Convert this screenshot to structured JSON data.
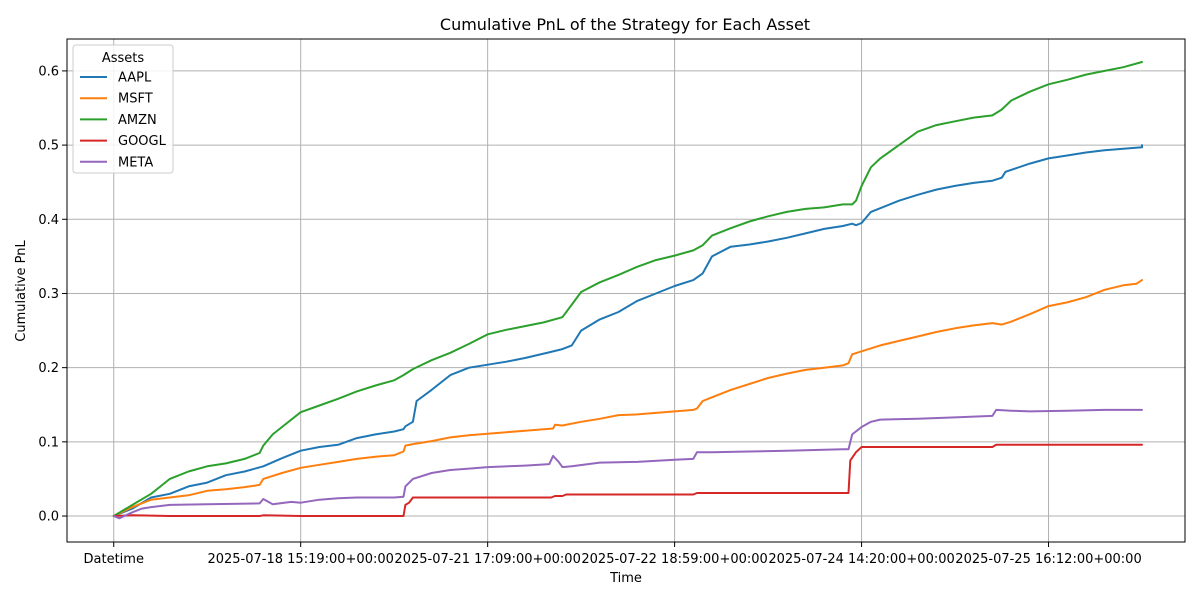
{
  "chart_data": {
    "type": "line",
    "title": "Cumulative PnL of the Strategy for Each Asset",
    "xlabel": "Time",
    "ylabel": "Cumulative PnL",
    "grid": true,
    "legend": {
      "title": "Assets",
      "placement": "top-left"
    },
    "x_ticks": [
      {
        "index": 0,
        "label": "Datetime"
      },
      {
        "index": 1,
        "label": "2025-07-18 15:19:00+00:00"
      },
      {
        "index": 2,
        "label": "2025-07-21 17:09:00+00:00"
      },
      {
        "index": 3,
        "label": "2025-07-22 18:59:00+00:00"
      },
      {
        "index": 4,
        "label": "2025-07-24 14:20:00+00:00"
      },
      {
        "index": 5,
        "label": "2025-07-25 16:12:00+00:00"
      }
    ],
    "xlim": [
      -0.25,
      5.73
    ],
    "ylim": [
      -0.035,
      0.643
    ],
    "y_ticks": [
      0.0,
      0.1,
      0.2,
      0.3,
      0.4,
      0.5,
      0.6
    ],
    "y_tick_labels": [
      "0.0",
      "0.1",
      "0.2",
      "0.3",
      "0.4",
      "0.5",
      "0.6"
    ],
    "series": [
      {
        "name": "AAPL",
        "color": "#1f77b4",
        "points": [
          [
            0,
            0
          ],
          [
            0.1,
            0.01
          ],
          [
            0.2,
            0.025
          ],
          [
            0.3,
            0.03
          ],
          [
            0.4,
            0.04
          ],
          [
            0.5,
            0.045
          ],
          [
            0.6,
            0.055
          ],
          [
            0.7,
            0.06
          ],
          [
            0.8,
            0.067
          ],
          [
            0.9,
            0.078
          ],
          [
            1.0,
            0.088
          ],
          [
            1.1,
            0.093
          ],
          [
            1.2,
            0.096
          ],
          [
            1.3,
            0.105
          ],
          [
            1.4,
            0.11
          ],
          [
            1.5,
            0.114
          ],
          [
            1.55,
            0.117
          ],
          [
            1.56,
            0.121
          ],
          [
            1.6,
            0.127
          ],
          [
            1.62,
            0.155
          ],
          [
            1.7,
            0.17
          ],
          [
            1.8,
            0.19
          ],
          [
            1.9,
            0.2
          ],
          [
            2.0,
            0.204
          ],
          [
            2.1,
            0.208
          ],
          [
            2.2,
            0.213
          ],
          [
            2.3,
            0.219
          ],
          [
            2.4,
            0.225
          ],
          [
            2.45,
            0.23
          ],
          [
            2.5,
            0.25
          ],
          [
            2.6,
            0.265
          ],
          [
            2.7,
            0.275
          ],
          [
            2.8,
            0.29
          ],
          [
            2.9,
            0.3
          ],
          [
            3.0,
            0.31
          ],
          [
            3.1,
            0.318
          ],
          [
            3.15,
            0.327
          ],
          [
            3.2,
            0.35
          ],
          [
            3.3,
            0.363
          ],
          [
            3.4,
            0.366
          ],
          [
            3.5,
            0.37
          ],
          [
            3.6,
            0.375
          ],
          [
            3.7,
            0.381
          ],
          [
            3.8,
            0.387
          ],
          [
            3.9,
            0.391
          ],
          [
            3.95,
            0.394
          ],
          [
            3.97,
            0.392
          ],
          [
            4.0,
            0.395
          ],
          [
            4.05,
            0.41
          ],
          [
            4.1,
            0.415
          ],
          [
            4.2,
            0.425
          ],
          [
            4.3,
            0.433
          ],
          [
            4.4,
            0.44
          ],
          [
            4.5,
            0.445
          ],
          [
            4.6,
            0.449
          ],
          [
            4.7,
            0.452
          ],
          [
            4.75,
            0.456
          ],
          [
            4.77,
            0.464
          ],
          [
            4.9,
            0.475
          ],
          [
            5.0,
            0.482
          ],
          [
            5.1,
            0.486
          ],
          [
            5.2,
            0.49
          ],
          [
            5.3,
            0.493
          ],
          [
            5.4,
            0.495
          ],
          [
            5.5,
            0.497
          ],
          [
            5.5,
            0.5
          ]
        ]
      },
      {
        "name": "MSFT",
        "color": "#ff7f0e",
        "points": [
          [
            0,
            0
          ],
          [
            0.1,
            0.012
          ],
          [
            0.2,
            0.022
          ],
          [
            0.3,
            0.025
          ],
          [
            0.4,
            0.028
          ],
          [
            0.5,
            0.034
          ],
          [
            0.6,
            0.036
          ],
          [
            0.7,
            0.039
          ],
          [
            0.78,
            0.042
          ],
          [
            0.8,
            0.05
          ],
          [
            0.9,
            0.058
          ],
          [
            1.0,
            0.065
          ],
          [
            1.1,
            0.069
          ],
          [
            1.2,
            0.073
          ],
          [
            1.3,
            0.077
          ],
          [
            1.4,
            0.08
          ],
          [
            1.5,
            0.082
          ],
          [
            1.55,
            0.087
          ],
          [
            1.56,
            0.095
          ],
          [
            1.6,
            0.097
          ],
          [
            1.7,
            0.101
          ],
          [
            1.8,
            0.106
          ],
          [
            1.9,
            0.109
          ],
          [
            2.0,
            0.111
          ],
          [
            2.1,
            0.113
          ],
          [
            2.2,
            0.115
          ],
          [
            2.3,
            0.117
          ],
          [
            2.35,
            0.118
          ],
          [
            2.36,
            0.123
          ],
          [
            2.4,
            0.122
          ],
          [
            2.5,
            0.127
          ],
          [
            2.6,
            0.131
          ],
          [
            2.7,
            0.136
          ],
          [
            2.8,
            0.137
          ],
          [
            2.9,
            0.139
          ],
          [
            3.0,
            0.141
          ],
          [
            3.1,
            0.143
          ],
          [
            3.12,
            0.145
          ],
          [
            3.15,
            0.155
          ],
          [
            3.2,
            0.16
          ],
          [
            3.3,
            0.17
          ],
          [
            3.4,
            0.178
          ],
          [
            3.5,
            0.186
          ],
          [
            3.6,
            0.192
          ],
          [
            3.7,
            0.197
          ],
          [
            3.8,
            0.2
          ],
          [
            3.9,
            0.203
          ],
          [
            3.93,
            0.206
          ],
          [
            3.95,
            0.218
          ],
          [
            4.0,
            0.222
          ],
          [
            4.1,
            0.23
          ],
          [
            4.2,
            0.236
          ],
          [
            4.3,
            0.242
          ],
          [
            4.4,
            0.248
          ],
          [
            4.5,
            0.253
          ],
          [
            4.6,
            0.257
          ],
          [
            4.7,
            0.26
          ],
          [
            4.75,
            0.258
          ],
          [
            4.8,
            0.262
          ],
          [
            4.9,
            0.272
          ],
          [
            5.0,
            0.283
          ],
          [
            5.1,
            0.288
          ],
          [
            5.2,
            0.295
          ],
          [
            5.3,
            0.305
          ],
          [
            5.4,
            0.311
          ],
          [
            5.47,
            0.313
          ],
          [
            5.5,
            0.318
          ]
        ]
      },
      {
        "name": "AMZN",
        "color": "#2ca02c",
        "points": [
          [
            0,
            0
          ],
          [
            0.1,
            0.015
          ],
          [
            0.2,
            0.03
          ],
          [
            0.25,
            0.04
          ],
          [
            0.3,
            0.05
          ],
          [
            0.4,
            0.06
          ],
          [
            0.5,
            0.067
          ],
          [
            0.6,
            0.071
          ],
          [
            0.7,
            0.077
          ],
          [
            0.78,
            0.085
          ],
          [
            0.8,
            0.095
          ],
          [
            0.85,
            0.11
          ],
          [
            0.9,
            0.12
          ],
          [
            1.0,
            0.14
          ],
          [
            1.1,
            0.149
          ],
          [
            1.2,
            0.158
          ],
          [
            1.3,
            0.168
          ],
          [
            1.4,
            0.176
          ],
          [
            1.5,
            0.183
          ],
          [
            1.55,
            0.19
          ],
          [
            1.6,
            0.198
          ],
          [
            1.7,
            0.21
          ],
          [
            1.8,
            0.22
          ],
          [
            1.9,
            0.232
          ],
          [
            2.0,
            0.245
          ],
          [
            2.1,
            0.251
          ],
          [
            2.2,
            0.256
          ],
          [
            2.3,
            0.261
          ],
          [
            2.4,
            0.268
          ],
          [
            2.45,
            0.285
          ],
          [
            2.5,
            0.302
          ],
          [
            2.6,
            0.315
          ],
          [
            2.7,
            0.325
          ],
          [
            2.8,
            0.336
          ],
          [
            2.9,
            0.345
          ],
          [
            3.0,
            0.351
          ],
          [
            3.1,
            0.358
          ],
          [
            3.15,
            0.365
          ],
          [
            3.2,
            0.378
          ],
          [
            3.3,
            0.388
          ],
          [
            3.4,
            0.397
          ],
          [
            3.5,
            0.404
          ],
          [
            3.6,
            0.41
          ],
          [
            3.7,
            0.414
          ],
          [
            3.8,
            0.416
          ],
          [
            3.9,
            0.42
          ],
          [
            3.95,
            0.42
          ],
          [
            3.97,
            0.425
          ],
          [
            4.0,
            0.445
          ],
          [
            4.05,
            0.47
          ],
          [
            4.1,
            0.482
          ],
          [
            4.2,
            0.5
          ],
          [
            4.3,
            0.518
          ],
          [
            4.4,
            0.527
          ],
          [
            4.5,
            0.532
          ],
          [
            4.6,
            0.537
          ],
          [
            4.7,
            0.54
          ],
          [
            4.75,
            0.548
          ],
          [
            4.8,
            0.56
          ],
          [
            4.9,
            0.572
          ],
          [
            5.0,
            0.582
          ],
          [
            5.1,
            0.588
          ],
          [
            5.2,
            0.595
          ],
          [
            5.3,
            0.6
          ],
          [
            5.4,
            0.605
          ],
          [
            5.5,
            0.612
          ]
        ]
      },
      {
        "name": "GOOGL",
        "color": "#d62728",
        "points": [
          [
            0,
            0
          ],
          [
            0.1,
            0.001
          ],
          [
            0.3,
            0.0
          ],
          [
            0.78,
            0.0
          ],
          [
            0.8,
            0.001
          ],
          [
            1.0,
            0.0
          ],
          [
            1.55,
            0.0
          ],
          [
            1.56,
            0.015
          ],
          [
            1.58,
            0.018
          ],
          [
            1.6,
            0.025
          ],
          [
            2.0,
            0.025
          ],
          [
            2.34,
            0.025
          ],
          [
            2.36,
            0.027
          ],
          [
            2.4,
            0.027
          ],
          [
            2.42,
            0.029
          ],
          [
            3.1,
            0.029
          ],
          [
            3.12,
            0.031
          ],
          [
            3.93,
            0.031
          ],
          [
            3.94,
            0.075
          ],
          [
            3.97,
            0.086
          ],
          [
            4.0,
            0.093
          ],
          [
            4.7,
            0.093
          ],
          [
            4.72,
            0.096
          ],
          [
            5.5,
            0.096
          ]
        ]
      },
      {
        "name": "META",
        "color": "#9467bd",
        "points": [
          [
            0,
            0
          ],
          [
            0.03,
            -0.003
          ],
          [
            0.1,
            0.005
          ],
          [
            0.15,
            0.01
          ],
          [
            0.2,
            0.012
          ],
          [
            0.3,
            0.015
          ],
          [
            0.5,
            0.016
          ],
          [
            0.78,
            0.017
          ],
          [
            0.8,
            0.023
          ],
          [
            0.85,
            0.016
          ],
          [
            0.95,
            0.019
          ],
          [
            1.0,
            0.018
          ],
          [
            1.1,
            0.022
          ],
          [
            1.2,
            0.024
          ],
          [
            1.3,
            0.025
          ],
          [
            1.5,
            0.025
          ],
          [
            1.55,
            0.026
          ],
          [
            1.56,
            0.04
          ],
          [
            1.6,
            0.05
          ],
          [
            1.7,
            0.058
          ],
          [
            1.8,
            0.062
          ],
          [
            1.9,
            0.064
          ],
          [
            2.0,
            0.066
          ],
          [
            2.2,
            0.068
          ],
          [
            2.33,
            0.07
          ],
          [
            2.35,
            0.081
          ],
          [
            2.38,
            0.073
          ],
          [
            2.4,
            0.066
          ],
          [
            2.45,
            0.067
          ],
          [
            2.6,
            0.072
          ],
          [
            2.8,
            0.073
          ],
          [
            3.0,
            0.076
          ],
          [
            3.1,
            0.077
          ],
          [
            3.12,
            0.086
          ],
          [
            3.2,
            0.086
          ],
          [
            3.4,
            0.087
          ],
          [
            3.6,
            0.088
          ],
          [
            3.9,
            0.09
          ],
          [
            3.93,
            0.09
          ],
          [
            3.95,
            0.11
          ],
          [
            4.0,
            0.12
          ],
          [
            4.05,
            0.127
          ],
          [
            4.1,
            0.13
          ],
          [
            4.3,
            0.131
          ],
          [
            4.5,
            0.133
          ],
          [
            4.7,
            0.135
          ],
          [
            4.72,
            0.143
          ],
          [
            4.8,
            0.142
          ],
          [
            4.9,
            0.141
          ],
          [
            5.1,
            0.142
          ],
          [
            5.3,
            0.143
          ],
          [
            5.5,
            0.143
          ]
        ]
      }
    ]
  }
}
